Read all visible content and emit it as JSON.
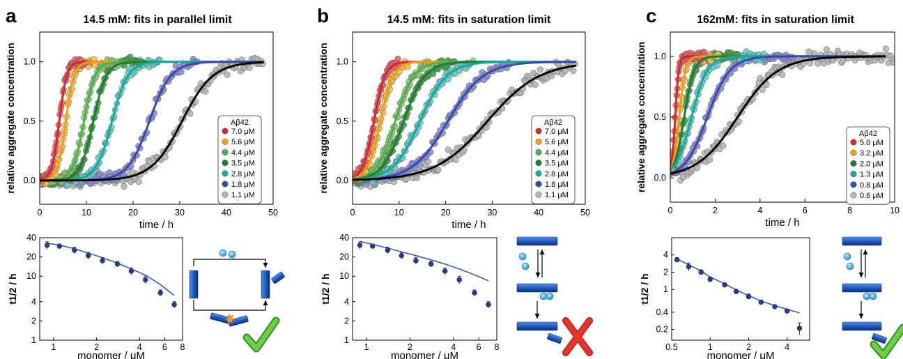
{
  "panel_letters": [
    "a",
    "b",
    "c"
  ],
  "chart_data": [
    {
      "type": "scatter",
      "panel": "a",
      "title": "14.5 mM: fits in parallel limit",
      "xlabel": "time / h",
      "ylabel": "relative aggregate concentration",
      "xlim": [
        0,
        50
      ],
      "ylim": [
        -0.2,
        1.25
      ],
      "xticks": [
        "0",
        "10",
        "20",
        "30",
        "40",
        "50"
      ],
      "yticks": [
        "0.0",
        "0.5",
        "1.0"
      ],
      "legend_title": "Aβ42",
      "legend_position": "center-right",
      "series": [
        {
          "name": "7.0 μM",
          "color": "#e8636a",
          "fit_color": "#d62728",
          "t_half": 4.2,
          "width": 0.8,
          "x_max": 10
        },
        {
          "name": "5.6 μM",
          "color": "#f7c44d",
          "fit_color": "#f39c12",
          "t_half": 5.6,
          "width": 0.9,
          "x_max": 12
        },
        {
          "name": "4.4 μM",
          "color": "#8dcb6a",
          "fit_color": "#4caf50",
          "t_half": 9.5,
          "width": 1.2,
          "x_max": 17
        },
        {
          "name": "3.5 μM",
          "color": "#45a047",
          "fit_color": "#1e7d32",
          "t_half": 11.5,
          "width": 1.4,
          "x_max": 22
        },
        {
          "name": "2.8 μM",
          "color": "#66cdc6",
          "fit_color": "#17a89e",
          "t_half": 15.5,
          "width": 1.7,
          "x_max": 26
        },
        {
          "name": "1.8 μM",
          "color": "#8a8ed8",
          "fit_color": "#3b4aa8",
          "t_half": 23.5,
          "width": 2.3,
          "x_max": 34
        },
        {
          "name": "1.1 μM",
          "color": "#b5b5b5",
          "fit_color": "#000000",
          "t_half": 30.5,
          "width": 3.3,
          "x_max": 48
        }
      ]
    },
    {
      "type": "scatter",
      "panel": "b",
      "title": "14.5 mM: fits in saturation limit",
      "xlabel": "time / h",
      "ylabel": "relative aggregate concentration",
      "xlim": [
        0,
        50
      ],
      "ylim": [
        -0.2,
        1.25
      ],
      "xticks": [
        "0",
        "10",
        "20",
        "30",
        "40",
        "50"
      ],
      "yticks": [
        "0.0",
        "0.5",
        "1.0"
      ],
      "legend_title": "Aβ42",
      "legend_position": "center-right",
      "series": [
        {
          "name": "7.0 μM",
          "color": "#e8636a",
          "fit_color": "#d62728",
          "t_half": 4.6,
          "width": 1.2,
          "x_max": 10
        },
        {
          "name": "5.6 μM",
          "color": "#f7c44d",
          "fit_color": "#f39c12",
          "t_half": 6.0,
          "width": 1.4,
          "x_max": 12
        },
        {
          "name": "4.4 μM",
          "color": "#8dcb6a",
          "fit_color": "#4caf50",
          "t_half": 9.2,
          "width": 2.0,
          "x_max": 17
        },
        {
          "name": "3.5 μM",
          "color": "#45a047",
          "fit_color": "#1e7d32",
          "t_half": 11.0,
          "width": 2.3,
          "x_max": 22
        },
        {
          "name": "2.8 μM",
          "color": "#66cdc6",
          "fit_color": "#17a89e",
          "t_half": 14.5,
          "width": 2.9,
          "x_max": 26
        },
        {
          "name": "1.8 μM",
          "color": "#8a8ed8",
          "fit_color": "#3b4aa8",
          "t_half": 20.5,
          "width": 3.8,
          "x_max": 34
        },
        {
          "name": "1.1 μM",
          "color": "#b5b5b5",
          "fit_color": "#000000",
          "t_half": 29.0,
          "width": 5.6,
          "x_max": 48
        }
      ]
    },
    {
      "type": "scatter",
      "panel": "c",
      "title": "162mM: fits in saturation limit",
      "xlabel": "time / h",
      "ylabel": "relative aggregate concentration",
      "xlim": [
        0,
        10
      ],
      "ylim": [
        -0.2,
        1.2
      ],
      "xticks": [
        "0",
        "2",
        "4",
        "6",
        "8",
        "10"
      ],
      "yticks": [
        "0.0",
        "0.5",
        "1.0"
      ],
      "legend_title": "Aβ42",
      "legend_position": "lower-right",
      "series": [
        {
          "name": "5.0 μM",
          "color": "#e8636a",
          "fit_color": "#d62728",
          "t_half": 0.22,
          "width": 0.08,
          "x_max": 1.6
        },
        {
          "name": "3.2 μM",
          "color": "#f7c44d",
          "fit_color": "#f39c12",
          "t_half": 0.4,
          "width": 0.14,
          "x_max": 2.2
        },
        {
          "name": "2.0 μM",
          "color": "#45a047",
          "fit_color": "#1e7d32",
          "t_half": 0.62,
          "width": 0.22,
          "x_max": 3.0
        },
        {
          "name": "1.3 μM",
          "color": "#66cdc6",
          "fit_color": "#17a89e",
          "t_half": 0.95,
          "width": 0.35,
          "x_max": 4.2
        },
        {
          "name": "0.8 μM",
          "color": "#8a8ed8",
          "fit_color": "#3b4aa8",
          "t_half": 1.65,
          "width": 0.5,
          "x_max": 5.5
        },
        {
          "name": "0.6 μM",
          "color": "#b5b5b5",
          "fit_color": "#000000",
          "t_half": 3.0,
          "width": 0.9,
          "x_max": 10
        }
      ]
    },
    {
      "type": "scatter",
      "panel": "a-inset",
      "xlabel": "monomer / μM",
      "ylabel": "t1/2 / h",
      "log_x": true,
      "log_y": true,
      "xlim": [
        0.8,
        8
      ],
      "ylim": [
        1,
        40
      ],
      "xticks": [
        "1",
        "2",
        "4",
        "6",
        "8"
      ],
      "yticks": [
        "1",
        "2",
        "4",
        "10",
        "20",
        "40"
      ],
      "points": {
        "x": [
          0.9,
          1.1,
          1.4,
          1.75,
          2.2,
          2.8,
          3.5,
          4.4,
          5.6,
          7.0
        ],
        "y": [
          30.5,
          29.5,
          25.5,
          21.0,
          17.5,
          15.5,
          12.0,
          8.8,
          5.5,
          3.6
        ],
        "err": [
          4.0,
          1.5,
          3.0,
          2.5,
          2.0,
          1.5,
          1.5,
          1.2,
          0.6,
          0.4
        ]
      },
      "fit": {
        "x": [
          0.9,
          1.1,
          1.4,
          1.75,
          2.2,
          2.8,
          3.5,
          4.4,
          5.6,
          7.0
        ],
        "y": [
          33.0,
          30.5,
          27.0,
          23.0,
          19.5,
          16.0,
          13.0,
          10.4,
          7.4,
          5.0
        ]
      }
    },
    {
      "type": "scatter",
      "panel": "b-inset",
      "xlabel": "monomer / μM",
      "ylabel": "t1/2 / h",
      "log_x": true,
      "log_y": true,
      "xlim": [
        0.8,
        8
      ],
      "ylim": [
        1,
        40
      ],
      "xticks": [
        "1",
        "2",
        "4",
        "6",
        "8"
      ],
      "yticks": [
        "1",
        "2",
        "4",
        "10",
        "20",
        "40"
      ],
      "points": {
        "x": [
          0.9,
          1.1,
          1.4,
          1.75,
          2.2,
          2.8,
          3.5,
          4.4,
          5.6,
          7.0
        ],
        "y": [
          30.5,
          29.5,
          25.5,
          21.0,
          17.5,
          15.5,
          12.0,
          8.8,
          5.5,
          3.6
        ],
        "err": [
          4.0,
          1.5,
          3.0,
          2.5,
          2.0,
          1.5,
          1.5,
          1.2,
          0.6,
          0.4
        ]
      },
      "fit": {
        "x": [
          0.9,
          1.1,
          1.4,
          1.75,
          2.2,
          2.8,
          3.5,
          4.4,
          5.6,
          7.0
        ],
        "y": [
          35.0,
          31.5,
          27.5,
          24.0,
          21.0,
          18.0,
          15.5,
          13.0,
          10.5,
          8.5
        ]
      }
    },
    {
      "type": "scatter",
      "panel": "c-inset",
      "xlabel": "monomer / μM",
      "ylabel": "t1/2 / h",
      "log_x": true,
      "log_y": true,
      "xlim": [
        0.5,
        6
      ],
      "ylim": [
        0.13,
        8
      ],
      "xticks": [
        "0.5",
        "1",
        "2",
        "4"
      ],
      "yticks": [
        "0.2",
        "0.4",
        "1",
        "2",
        "4"
      ],
      "points": {
        "x": [
          0.55,
          0.68,
          0.85,
          1.0,
          1.3,
          1.6,
          2.0,
          2.5,
          3.2,
          4.0,
          5.0
        ],
        "y": [
          3.3,
          2.5,
          2.0,
          1.5,
          1.2,
          0.92,
          0.75,
          0.6,
          0.5,
          0.42,
          0.21
        ],
        "err": [
          0.3,
          0.4,
          0.2,
          0.15,
          0.1,
          0.08,
          0.08,
          0.05,
          0.04,
          0.03,
          0.05
        ]
      },
      "fit": {
        "x": [
          0.55,
          0.68,
          0.85,
          1.0,
          1.3,
          1.6,
          2.0,
          2.5,
          3.2,
          4.0,
          5.0
        ],
        "y": [
          3.4,
          2.7,
          2.1,
          1.65,
          1.25,
          0.98,
          0.78,
          0.63,
          0.52,
          0.45,
          0.39
        ]
      }
    }
  ]
}
